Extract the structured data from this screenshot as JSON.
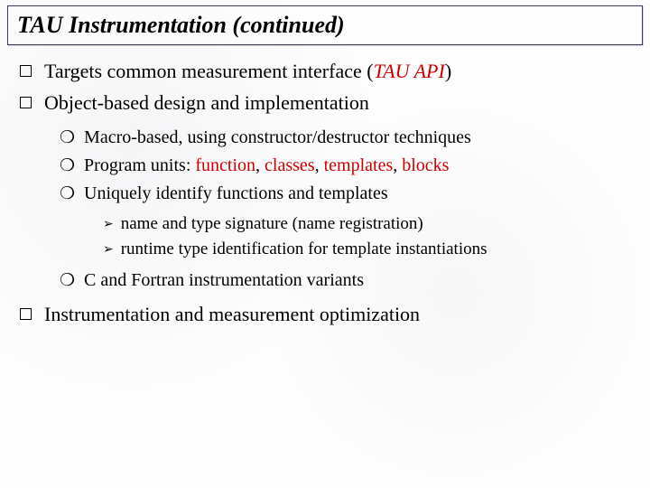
{
  "title": "TAU Instrumentation (continued)",
  "colors": {
    "text": "#000000",
    "accent": "#cc0000",
    "title_border": "#3a3a6a",
    "background": "#fdfdfd"
  },
  "fonts": {
    "family": "Times New Roman",
    "title_size_pt": 26,
    "lvl1_size_pt": 22,
    "lvl2_size_pt": 20,
    "lvl3_size_pt": 19
  },
  "bullets": {
    "lvl1": [
      {
        "pre": "Targets common measurement interface (",
        "em": "TAU API",
        "post": ")"
      },
      {
        "text": "Object-based design and implementation"
      }
    ],
    "lvl2_a": [
      {
        "text": "Macro-based, using constructor/destructor techniques"
      },
      {
        "pre": "Program units: ",
        "r1": "function",
        "s1": ", ",
        "r2": "classes",
        "s2": ", ",
        "r3": "templates",
        "s3": ", ",
        "r4": "blocks"
      },
      {
        "text": "Uniquely identify functions and templates"
      }
    ],
    "lvl3": [
      {
        "text": "name and type signature (name registration)"
      },
      {
        "text": "runtime type identification for template instantiations"
      }
    ],
    "lvl2_b": [
      {
        "text": "C and Fortran instrumentation variants"
      }
    ],
    "lvl1_tail": [
      {
        "text": "Instrumentation and measurement optimization"
      }
    ]
  }
}
